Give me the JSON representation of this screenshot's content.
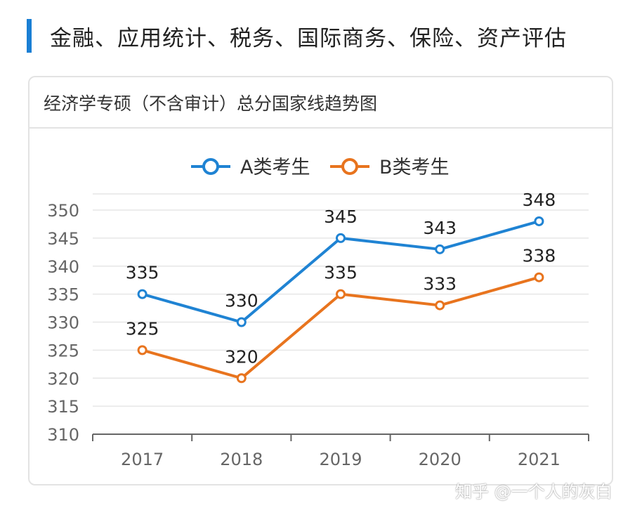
{
  "heading": "金融、应用统计、税务、国际商务、保险、资产评估",
  "card_title": "经济学专硕（不含审计）总分国家线趋势图",
  "watermark": "知乎 @一个人的灰白",
  "colors": {
    "accent": "#1a7fd4",
    "series_a": "#1f83d3",
    "series_b": "#e8741e",
    "grid": "#e6e6e6"
  },
  "chart_data": {
    "type": "line",
    "categories": [
      "2017",
      "2018",
      "2019",
      "2020",
      "2021"
    ],
    "series": [
      {
        "name": "A类考生",
        "values": [
          335,
          330,
          345,
          343,
          348
        ]
      },
      {
        "name": "B类考生",
        "values": [
          325,
          320,
          335,
          333,
          338
        ]
      }
    ],
    "ylim": [
      310,
      350
    ],
    "yticks": [
      310,
      315,
      320,
      325,
      330,
      335,
      340,
      345,
      350
    ],
    "grid": true,
    "legend": "top-center",
    "data_labels": true
  }
}
